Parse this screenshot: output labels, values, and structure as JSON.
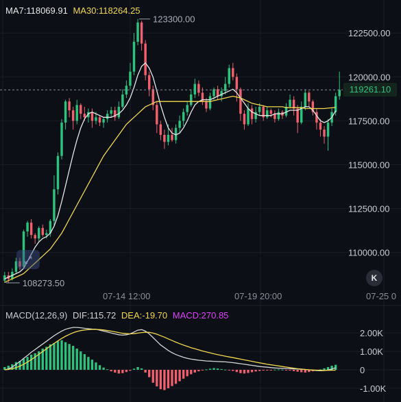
{
  "legend": {
    "ma7": "MA7:118069.91",
    "ma30": "MA30:118264.25",
    "macd_params": "MACD(12,26,9)",
    "dif": "DIF:115.72",
    "dea": "DEA:-19.70",
    "macd": "MACD:270.85"
  },
  "price_axis": {
    "labels": [
      "122500.00",
      "120000.00",
      "117500.00",
      "115000.00",
      "112500.00",
      "110000.00"
    ],
    "values": [
      122500,
      120000,
      117500,
      115000,
      112500,
      110000
    ],
    "current": "119261.10",
    "current_value": 119261.1
  },
  "macd_axis": {
    "labels": [
      "2.00K",
      "1.00K",
      "0",
      "-1.00K"
    ],
    "values": [
      2000,
      1000,
      0,
      -1000
    ]
  },
  "time_axis": {
    "labels": [
      "07-14 12:00",
      "07-19 20:00",
      "07-25 0"
    ]
  },
  "annotations": {
    "high": "123300.00",
    "low": "108273.50"
  },
  "controls": {
    "scroll_latest": "K",
    "expand": "⤢"
  },
  "colors": {
    "up": "#2ec27e",
    "down": "#f0616d",
    "ma7": "#e8e8e8",
    "ma30": "#f2d94e",
    "dif": "#d4d4d4",
    "dea": "#f2d94e",
    "macd_text": "#e040fb",
    "background": "#0d0f17"
  },
  "chart_data": {
    "type": "candlestick",
    "y_range": [
      108000,
      123600
    ],
    "macd_range": [
      -1300,
      2600
    ],
    "candles": [
      [
        108400,
        108700,
        108273.5,
        108900
      ],
      [
        108700,
        108500,
        108300,
        108900
      ],
      [
        108500,
        108900,
        108400,
        109100
      ],
      [
        108900,
        109500,
        108800,
        109700
      ],
      [
        109500,
        109200,
        109000,
        109700
      ],
      [
        109200,
        111200,
        109100,
        111300
      ],
      [
        111200,
        111700,
        110900,
        111800
      ],
      [
        111700,
        111000,
        110800,
        111900
      ],
      [
        111000,
        110800,
        110500,
        111100
      ],
      [
        110800,
        111400,
        110600,
        111500
      ],
      [
        111400,
        111000,
        110900,
        111600
      ],
      [
        111000,
        111100,
        110800,
        111300
      ],
      [
        111100,
        111800,
        110900,
        111900
      ],
      [
        111800,
        113600,
        111500,
        114400
      ],
      [
        113600,
        115500,
        113300,
        115700
      ],
      [
        115500,
        117400,
        115300,
        117600
      ],
      [
        117400,
        118600,
        117000,
        118700
      ],
      [
        118600,
        118100,
        117700,
        118800
      ],
      [
        118100,
        117500,
        117000,
        118300
      ],
      [
        117500,
        118400,
        117300,
        118700
      ],
      [
        118400,
        117900,
        117600,
        118500
      ],
      [
        117900,
        117700,
        117500,
        118300
      ],
      [
        117700,
        118000,
        117400,
        118200
      ],
      [
        118000,
        117500,
        117100,
        118200
      ],
      [
        117500,
        117700,
        117300,
        118000
      ],
      [
        117700,
        117400,
        117200,
        117800
      ],
      [
        117400,
        117600,
        117100,
        117700
      ],
      [
        117600,
        117900,
        117400,
        118100
      ],
      [
        117900,
        118100,
        117700,
        118300
      ],
      [
        118100,
        117700,
        117500,
        118300
      ],
      [
        117700,
        118300,
        117600,
        118600
      ],
      [
        118300,
        119000,
        118200,
        119300
      ],
      [
        119000,
        119500,
        118800,
        119800
      ],
      [
        119500,
        120300,
        119300,
        120800
      ],
      [
        120300,
        122000,
        120100,
        122500
      ],
      [
        122000,
        123100,
        121800,
        123300
      ],
      [
        123100,
        121900,
        121500,
        123200
      ],
      [
        121900,
        120100,
        119800,
        122100
      ],
      [
        120100,
        119300,
        118900,
        120300
      ],
      [
        119300,
        118400,
        118100,
        119500
      ],
      [
        118400,
        117300,
        116800,
        118600
      ],
      [
        117300,
        116700,
        116400,
        117500
      ],
      [
        116700,
        116300,
        115900,
        117000
      ],
      [
        116300,
        116700,
        116100,
        117300
      ],
      [
        116700,
        116400,
        116300,
        117100
      ],
      [
        116400,
        117100,
        116200,
        117300
      ],
      [
        117100,
        117500,
        116800,
        117800
      ],
      [
        117500,
        118000,
        117200,
        118200
      ],
      [
        118000,
        118400,
        117800,
        118600
      ],
      [
        118400,
        119000,
        118300,
        119300
      ],
      [
        119000,
        119600,
        118800,
        119900
      ],
      [
        119600,
        119100,
        118900,
        119800
      ],
      [
        119100,
        118600,
        118400,
        119400
      ],
      [
        118600,
        118200,
        118000,
        118800
      ],
      [
        118200,
        118900,
        118100,
        119100
      ],
      [
        118900,
        119300,
        118700,
        119400
      ],
      [
        119300,
        118900,
        118700,
        119500
      ],
      [
        118900,
        119200,
        118600,
        119400
      ],
      [
        119200,
        119600,
        119000,
        120000
      ],
      [
        119600,
        120500,
        119400,
        120700
      ],
      [
        120500,
        120000,
        119800,
        120800
      ],
      [
        120000,
        119300,
        118600,
        120200
      ],
      [
        119300,
        117900,
        117500,
        119400
      ],
      [
        117900,
        117300,
        117000,
        118100
      ],
      [
        117300,
        118200,
        117200,
        118500
      ],
      [
        118200,
        117600,
        117300,
        118400
      ],
      [
        117600,
        118000,
        117400,
        118300
      ],
      [
        118000,
        118300,
        117800,
        118500
      ],
      [
        118300,
        117700,
        117500,
        118400
      ],
      [
        117700,
        118100,
        117600,
        118300
      ],
      [
        118100,
        117900,
        117700,
        118200
      ],
      [
        117900,
        117600,
        117400,
        118100
      ],
      [
        117600,
        118000,
        117500,
        118200
      ],
      [
        118000,
        117800,
        117600,
        118100
      ],
      [
        117800,
        118300,
        117700,
        118500
      ],
      [
        118300,
        118700,
        118200,
        119000
      ],
      [
        118700,
        118200,
        117800,
        118900
      ],
      [
        118200,
        117400,
        116800,
        118400
      ],
      [
        117400,
        118300,
        117300,
        118600
      ],
      [
        118300,
        119100,
        118100,
        119300
      ],
      [
        119100,
        118600,
        118300,
        119200
      ],
      [
        118600,
        118000,
        117800,
        118700
      ],
      [
        118000,
        117400,
        117000,
        118200
      ],
      [
        117400,
        117000,
        116600,
        117600
      ],
      [
        117000,
        116600,
        116200,
        117200
      ],
      [
        116600,
        117400,
        115800,
        117600
      ],
      [
        117400,
        118000,
        117200,
        118200
      ],
      [
        118000,
        118900,
        117800,
        119100
      ],
      [
        118900,
        119261.1,
        118700,
        120300
      ]
    ],
    "macd_hist": [
      150,
      220,
      300,
      420,
      480,
      600,
      700,
      820,
      900,
      1000,
      1150,
      1250,
      1380,
      1450,
      1550,
      1600,
      1500,
      1400,
      1300,
      1150,
      1000,
      850,
      700,
      550,
      400,
      250,
      120,
      30,
      -80,
      -150,
      -200,
      -180,
      -120,
      -50,
      60,
      150,
      80,
      -150,
      -400,
      -700,
      -900,
      -1050,
      -1100,
      -1000,
      -880,
      -760,
      -620,
      -480,
      -350,
      -240,
      -150,
      -80,
      -30,
      20,
      60,
      90,
      70,
      40,
      10,
      -20,
      -60,
      -120,
      -180,
      -200,
      -170,
      -130,
      -90,
      -60,
      -40,
      -20,
      -10,
      10,
      20,
      10,
      -10,
      -40,
      -70,
      -100,
      -130,
      -150,
      -120,
      -80,
      -30,
      20,
      80,
      150,
      220,
      270.85
    ],
    "dif": [
      0,
      50,
      150,
      300,
      450,
      620,
      780,
      950,
      1100,
      1250,
      1400,
      1550,
      1700,
      1850,
      1980,
      2100,
      2200,
      2260,
      2300,
      2300,
      2280,
      2250,
      2230,
      2210,
      2200,
      2150,
      2100,
      2050,
      2000,
      1950,
      1900,
      1880,
      1900,
      1950,
      2050,
      2150,
      2180,
      2100,
      1950,
      1750,
      1550,
      1350,
      1200,
      1050,
      930,
      830,
      750,
      680,
      620,
      580,
      550,
      520,
      500,
      480,
      470,
      460,
      450,
      440,
      430,
      410,
      390,
      360,
      330,
      300,
      270,
      240,
      210,
      180,
      160,
      140,
      120,
      100,
      90,
      80,
      70,
      60,
      50,
      40,
      30,
      20,
      0,
      -20,
      -40,
      -50,
      -40,
      -10,
      40,
      115.72
    ],
    "dea": [
      0,
      20,
      60,
      120,
      200,
      300,
      420,
      550,
      690,
      840,
      990,
      1140,
      1290,
      1430,
      1570,
      1700,
      1820,
      1920,
      2010,
      2080,
      2130,
      2160,
      2180,
      2190,
      2190,
      2180,
      2160,
      2130,
      2100,
      2060,
      2020,
      1980,
      1960,
      1950,
      1960,
      1990,
      2020,
      2040,
      2030,
      1990,
      1930,
      1850,
      1770,
      1680,
      1590,
      1500,
      1420,
      1340,
      1270,
      1200,
      1140,
      1080,
      1020,
      970,
      920,
      870,
      820,
      780,
      740,
      700,
      660,
      620,
      580,
      540,
      500,
      460,
      420,
      380,
      340,
      300,
      270,
      240,
      210,
      180,
      150,
      120,
      90,
      60,
      40,
      20,
      0,
      -10,
      -20,
      -25,
      -28,
      -25,
      -22,
      -19.7
    ],
    "ma7": [
      108500,
      108600,
      108700,
      108800,
      108900,
      109100,
      109500,
      109900,
      110300,
      110600,
      110800,
      110900,
      111100,
      111500,
      112100,
      112900,
      113800,
      114700,
      115600,
      116400,
      117100,
      117600,
      117900,
      118000,
      117900,
      117800,
      117700,
      117700,
      117700,
      117800,
      117900,
      118100,
      118400,
      118800,
      119400,
      120100,
      120600,
      120800,
      120500,
      120000,
      119200,
      118400,
      117700,
      117100,
      116800,
      116700,
      116800,
      117100,
      117500,
      118000,
      118400,
      118600,
      118700,
      118700,
      118700,
      118800,
      118900,
      119000,
      119100,
      119200,
      119300,
      119100,
      118800,
      118500,
      118200,
      118000,
      117900,
      117800,
      117800,
      117800,
      117800,
      117900,
      117900,
      117900,
      118000,
      118100,
      118100,
      118100,
      118200,
      118300,
      118300,
      118100,
      117800,
      117500,
      117400,
      117500,
      117700,
      118069.91
    ],
    "ma30": [
      108300,
      108400,
      108500,
      108600,
      108700,
      108800,
      109000,
      109200,
      109400,
      109600,
      109800,
      110000,
      110200,
      110500,
      110800,
      111100,
      111500,
      111900,
      112300,
      112700,
      113100,
      113500,
      113900,
      114300,
      114700,
      115100,
      115500,
      115800,
      116100,
      116400,
      116700,
      117000,
      117300,
      117500,
      117700,
      117900,
      118100,
      118300,
      118400,
      118500,
      118600,
      118600,
      118600,
      118600,
      118600,
      118600,
      118600,
      118600,
      118600,
      118600,
      118600,
      118600,
      118600,
      118600,
      118600,
      118650,
      118700,
      118750,
      118800,
      118850,
      118900,
      118850,
      118800,
      118700,
      118600,
      118500,
      118450,
      118400,
      118350,
      118300,
      118300,
      118300,
      118300,
      118300,
      118250,
      118250,
      118250,
      118250,
      118250,
      118200,
      118200,
      118200,
      118200,
      118200,
      118200,
      118220,
      118240,
      118264.25
    ]
  }
}
